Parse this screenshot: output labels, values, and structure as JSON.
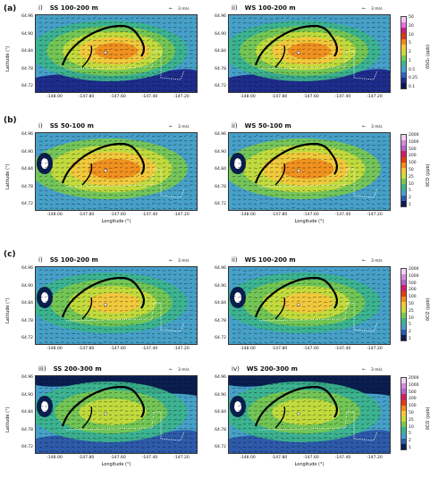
{
  "sections": [
    {
      "id": "a",
      "label": "(a)",
      "rows": [
        {
          "panels": [
            {
              "num": "i)",
              "title": "SS 100-200 m",
              "variant": "so2"
            },
            {
              "num": "ii)",
              "title": "WS 100-200 m",
              "variant": "so2"
            }
          ],
          "show_xticks": true,
          "show_xlabel": false
        }
      ],
      "colorbar": {
        "title": "δSO₂ (ppb)",
        "ticks": [
          "50",
          "20",
          "10",
          "5",
          "2",
          "1",
          "0.5",
          "0.25",
          "0.1"
        ]
      }
    },
    {
      "id": "b",
      "label": "(b)",
      "rows": [
        {
          "panels": [
            {
              "num": "i)",
              "title": "SS 50-100 m",
              "variant": "co_low"
            },
            {
              "num": "ii)",
              "title": "WS 50-100 m",
              "variant": "co_low"
            }
          ],
          "show_xticks": true,
          "show_xlabel": true
        }
      ],
      "colorbar": {
        "title": "δCO (ppb)",
        "ticks": [
          "2000",
          "1000",
          "500",
          "200",
          "100",
          "50",
          "25",
          "10",
          "5",
          "2",
          "1"
        ]
      }
    },
    {
      "id": "c",
      "label": "(c)",
      "rows": [
        {
          "panels": [
            {
              "num": "i)",
              "title": "SS 100-200 m",
              "variant": "co_mid"
            },
            {
              "num": "ii)",
              "title": "WS 100-200 m",
              "variant": "co_mid"
            }
          ],
          "show_xticks": true,
          "show_xlabel": false
        },
        {
          "panels": [
            {
              "num": "iii)",
              "title": "SS 200-300 m",
              "variant": "co_high"
            },
            {
              "num": "iv)",
              "title": "WS 200-300 m",
              "variant": "co_high"
            }
          ],
          "show_xticks": true,
          "show_xlabel": true
        }
      ],
      "colorbars": [
        {
          "title": "δCO (ppb)",
          "ticks": [
            "2000",
            "1000",
            "500",
            "200",
            "100",
            "50",
            "25",
            "10",
            "5",
            "2",
            "1"
          ]
        },
        {
          "title": "δCO (ppb)",
          "ticks": [
            "2000",
            "1000",
            "500",
            "200",
            "100",
            "50",
            "25",
            "10",
            "5",
            "2",
            "1"
          ]
        }
      ]
    }
  ],
  "axes": {
    "ylabel": "Latitude (°)",
    "xlabel": "Longitude (°)",
    "yticks": [
      "64.96",
      "64.90",
      "64.84",
      "64.78",
      "64.72"
    ],
    "xticks": [
      "-148.00",
      "-147.80",
      "-147.60",
      "-147.40",
      "-147.20"
    ]
  },
  "wind_reference": "3 m/s",
  "colors": {
    "so2_scale": [
      "#f5c8f0",
      "#e070e0",
      "#c81e78",
      "#d23c14",
      "#f08c1e",
      "#f5c83c",
      "#c8dc3c",
      "#78c850",
      "#3cb48c",
      "#46a0c8",
      "#3264be",
      "#1e2d8c",
      "#0a1450"
    ],
    "co_scale": [
      "#f5d2f5",
      "#d28cdc",
      "#b464c8",
      "#d21e64",
      "#e63c14",
      "#f08c1e",
      "#f5c83c",
      "#c8dc3c",
      "#78c850",
      "#3cb48c",
      "#46a0c8",
      "#2d5aaa",
      "#0a1e50"
    ],
    "terrain_line": "#000000",
    "boundary_dots": "#ffffff"
  }
}
